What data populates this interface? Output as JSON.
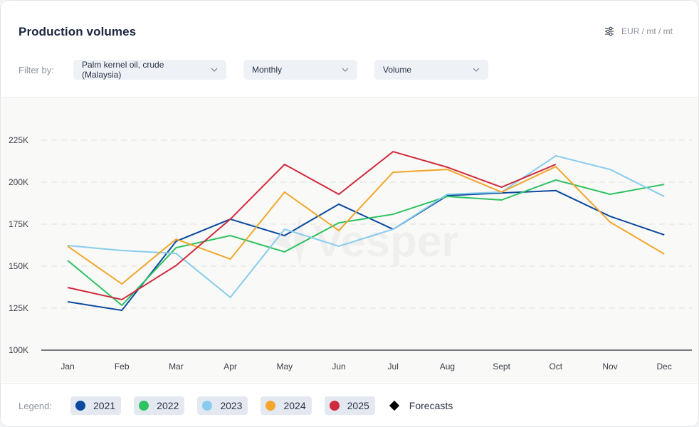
{
  "header": {
    "title": "Production volumes",
    "units": "EUR / mt / mt",
    "units_icon": "sliders-icon"
  },
  "filters": {
    "label": "Filter by:",
    "commodity": "Palm kernel oil, crude (Malaysia)",
    "frequency": "Monthly",
    "metric": "Volume"
  },
  "legend": {
    "label": "Legend:",
    "items": [
      {
        "label": "2021",
        "color": "#0b4a9e"
      },
      {
        "label": "2022",
        "color": "#2ec262"
      },
      {
        "label": "2023",
        "color": "#87ccec"
      },
      {
        "label": "2024",
        "color": "#f2a62b"
      },
      {
        "label": "2025",
        "color": "#cf2b3c"
      }
    ],
    "forecasts_label": "Forecasts"
  },
  "watermark": "Vesper",
  "chart_data": {
    "type": "line",
    "title": "Production volumes",
    "xlabel": "",
    "ylabel": "",
    "categories": [
      "Jan",
      "Feb",
      "Mar",
      "Apr",
      "May",
      "Jun",
      "Jul",
      "Aug",
      "Sept",
      "Oct",
      "Nov",
      "Dec"
    ],
    "ylim": [
      100000,
      225000
    ],
    "yticks": [
      100000,
      125000,
      150000,
      175000,
      200000,
      225000
    ],
    "ytick_labels": [
      "100K",
      "125K",
      "150K",
      "175K",
      "200K",
      "225K"
    ],
    "grid": "horizontal-dashed",
    "legend_position": "bottom",
    "series": [
      {
        "name": "2021",
        "color": "#0b4a9e",
        "values": [
          128800,
          123700,
          164800,
          178000,
          168200,
          186900,
          172000,
          192000,
          193600,
          195000,
          179700,
          168600
        ]
      },
      {
        "name": "2022",
        "color": "#2ec262",
        "values": [
          153400,
          126700,
          161000,
          168200,
          158500,
          175800,
          180900,
          191500,
          189400,
          201300,
          192800,
          198700
        ]
      },
      {
        "name": "2023",
        "color": "#87ccec",
        "values": [
          162300,
          159300,
          157600,
          131400,
          172000,
          161900,
          172000,
          192800,
          194100,
          215700,
          207600,
          191500
        ]
      },
      {
        "name": "2024",
        "color": "#f2a62b",
        "values": [
          161900,
          139400,
          166100,
          154200,
          194100,
          171200,
          205900,
          207600,
          194100,
          209300,
          176300,
          157200
        ]
      },
      {
        "name": "2025",
        "color": "#cf2b3c",
        "values": [
          137300,
          130100,
          150400,
          178000,
          210600,
          192800,
          218200,
          208900,
          197000,
          210600,
          null,
          null
        ]
      }
    ]
  }
}
